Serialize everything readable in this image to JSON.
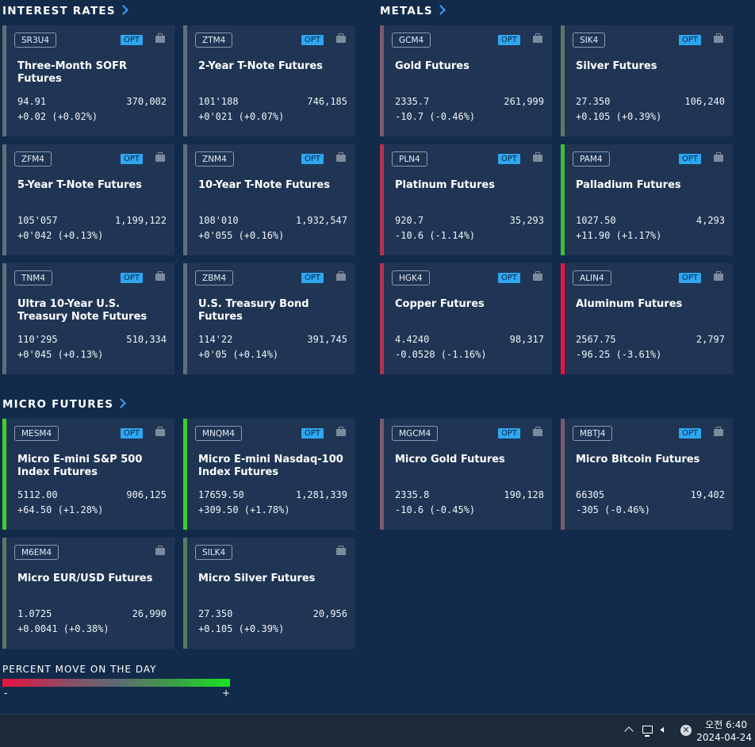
{
  "sections": {
    "interest_rates": "INTEREST RATES",
    "metals": "METALS",
    "micro_futures": "MICRO FUTURES"
  },
  "opt_label": "OPT",
  "cards": [
    {
      "symbol": "SR3U4",
      "name": "Three-Month SOFR Futures",
      "last": "94.91",
      "volume": "370,002",
      "change": "+0.02 (+0.02%)",
      "color": "#5f6f7a"
    },
    {
      "symbol": "ZTM4",
      "name": "2-Year T-Note Futures",
      "last": "101'188",
      "volume": "746,185",
      "change": "+0'021 (+0.07%)",
      "color": "#5f6f7a"
    },
    {
      "symbol": "ZFM4",
      "name": "5-Year T-Note Futures",
      "last": "105'057",
      "volume": "1,199,122",
      "change": "+0'042 (+0.13%)",
      "color": "#5f6f7a"
    },
    {
      "symbol": "ZNM4",
      "name": "10-Year T-Note Futures",
      "last": "108'010",
      "volume": "1,932,547",
      "change": "+0'055 (+0.16%)",
      "color": "#5f6f7a"
    },
    {
      "symbol": "TNM4",
      "name": "Ultra 10-Year U.S. Treasury Note Futures",
      "last": "110'295",
      "volume": "510,334",
      "change": "+0'045 (+0.13%)",
      "color": "#5f6f7a"
    },
    {
      "symbol": "ZBM4",
      "name": "U.S. Treasury Bond Futures",
      "last": "114'22",
      "volume": "391,745",
      "change": "+0'05 (+0.14%)",
      "color": "#5f6f7a"
    },
    {
      "symbol": "GCM4",
      "name": "Gold Futures",
      "last": "2335.7",
      "volume": "261,999",
      "change": "-10.7 (-0.46%)",
      "color": "#7a5a6c"
    },
    {
      "symbol": "SIK4",
      "name": "Silver Futures",
      "last": "27.350",
      "volume": "106,240",
      "change": "+0.105 (+0.39%)",
      "color": "#5b7a62"
    },
    {
      "symbol": "PLN4",
      "name": "Platinum Futures",
      "last": "920.7",
      "volume": "35,293",
      "change": "-10.6 (-1.14%)",
      "color": "#b0344f"
    },
    {
      "symbol": "PAM4",
      "name": "Palladium Futures",
      "last": "1027.50",
      "volume": "4,293",
      "change": "+11.90 (+1.17%)",
      "color": "#3fbf3a"
    },
    {
      "symbol": "HGK4",
      "name": "Copper Futures",
      "last": "4.4240",
      "volume": "98,317",
      "change": "-0.0520 (-1.16%)",
      "color": "#b0344f"
    },
    {
      "symbol": "ALIN4",
      "name": "Aluminum Futures",
      "last": "2567.75",
      "volume": "2,797",
      "change": "-96.25 (-3.61%)",
      "color": "#f0103c"
    },
    {
      "symbol": "MESM4",
      "name": "Micro E-mini S&P 500 Index Futures",
      "last": "5112.00",
      "volume": "906,125",
      "change": "+64.50 (+1.28%)",
      "color": "#3fcf30"
    },
    {
      "symbol": "MNQM4",
      "name": "Micro E-mini Nasdaq-100 Index Futures",
      "last": "17659.50",
      "volume": "1,281,339",
      "change": "+309.50 (+1.78%)",
      "color": "#3fcf30"
    },
    {
      "symbol": "MGCM4",
      "name": "Micro Gold Futures",
      "last": "2335.8",
      "volume": "190,128",
      "change": "-10.6 (-0.45%)",
      "color": "#7a5a6c"
    },
    {
      "symbol": "MBTJ4",
      "name": "Micro Bitcoin Futures",
      "last": "66305",
      "volume": "19,402",
      "change": "-305 (-0.46%)",
      "color": "#7a5a6c"
    },
    {
      "symbol": "M6EM4",
      "name": "Micro EUR/USD Futures",
      "last": "1.0725",
      "volume": "26,990",
      "change": "+0.0041 (+0.38%)",
      "color": "#5b7a62"
    },
    {
      "symbol": "SILK4",
      "name": "Micro Silver Futures",
      "last": "27.350",
      "volume": "20,956",
      "change": "+0.105 (+0.39%)",
      "color": "#5b7a62"
    }
  ],
  "legend": {
    "title": "PERCENT MOVE ON THE DAY",
    "minus": "-",
    "plus": "+"
  },
  "taskbar": {
    "time": "오전 6:40",
    "date": "2024-04-24",
    "volume_icon": "speaker-icon"
  }
}
